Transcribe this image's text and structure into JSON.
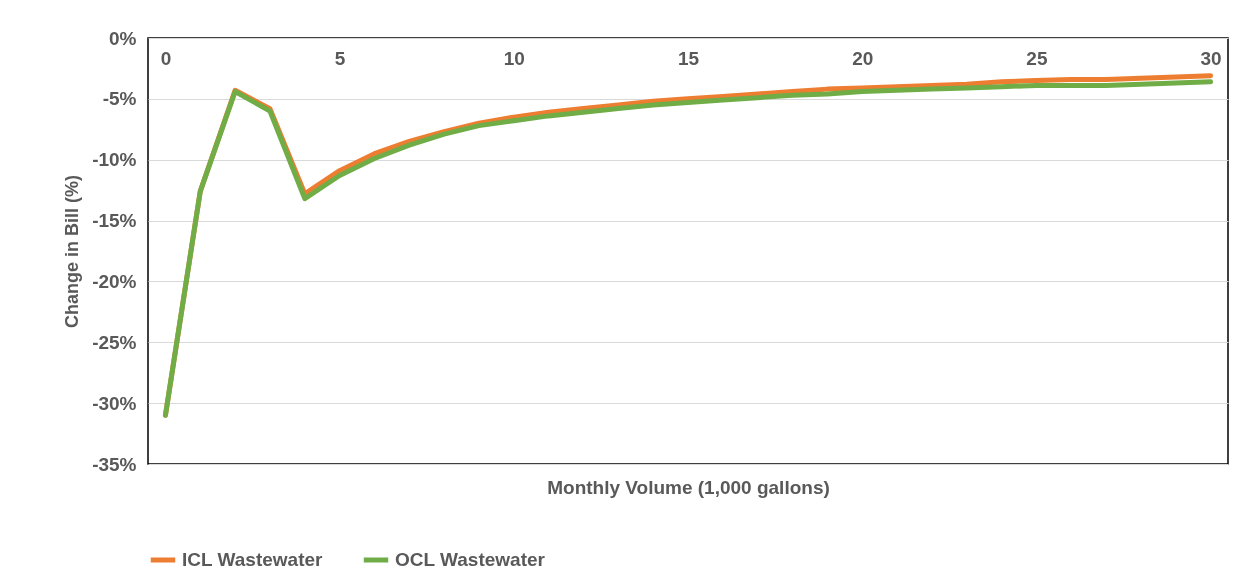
{
  "chart_data": {
    "type": "line",
    "xlabel": "Monthly Volume (1,000 gallons)",
    "ylabel": "Change in Bill (%)",
    "x": [
      0,
      1,
      2,
      3,
      4,
      5,
      6,
      7,
      8,
      9,
      10,
      11,
      12,
      13,
      14,
      15,
      16,
      17,
      18,
      19,
      20,
      21,
      22,
      23,
      24,
      25,
      26,
      27,
      28,
      29,
      30
    ],
    "xlim": [
      -0.5,
      30.5
    ],
    "xticks": [
      0,
      5,
      10,
      15,
      20,
      25,
      30
    ],
    "ylim": [
      -35,
      0
    ],
    "yticks": [
      {
        "value": 0,
        "label": "0%"
      },
      {
        "value": -5,
        "label": "-5%"
      },
      {
        "value": -10,
        "label": "-10%"
      },
      {
        "value": -15,
        "label": "-15%"
      },
      {
        "value": -20,
        "label": "-20%"
      },
      {
        "value": -25,
        "label": "-25%"
      },
      {
        "value": -30,
        "label": "-30%"
      },
      {
        "value": -35,
        "label": "-35%"
      }
    ],
    "series": [
      {
        "name": "ICL Wastewater",
        "color": "#ed7d31",
        "values": [
          -31.0,
          -12.6,
          -4.3,
          -5.8,
          -12.8,
          -10.9,
          -9.5,
          -8.5,
          -7.7,
          -7.0,
          -6.5,
          -6.1,
          -5.8,
          -5.5,
          -5.2,
          -5.0,
          -4.8,
          -4.6,
          -4.4,
          -4.2,
          -4.1,
          -4.0,
          -3.9,
          -3.8,
          -3.6,
          -3.5,
          -3.4,
          -3.4,
          -3.3,
          -3.2,
          -3.1
        ]
      },
      {
        "name": "OCL Wastewater",
        "color": "#70ad47",
        "values": [
          -31.0,
          -12.6,
          -4.4,
          -6.0,
          -13.2,
          -11.3,
          -9.9,
          -8.8,
          -7.9,
          -7.2,
          -6.8,
          -6.4,
          -6.1,
          -5.8,
          -5.5,
          -5.3,
          -5.1,
          -4.9,
          -4.7,
          -4.6,
          -4.4,
          -4.3,
          -4.2,
          -4.1,
          -4.0,
          -3.9,
          -3.9,
          -3.9,
          -3.8,
          -3.7,
          -3.6
        ]
      }
    ],
    "grid": "y",
    "legend": "bottom",
    "marker": "none",
    "line_style": "solid"
  }
}
